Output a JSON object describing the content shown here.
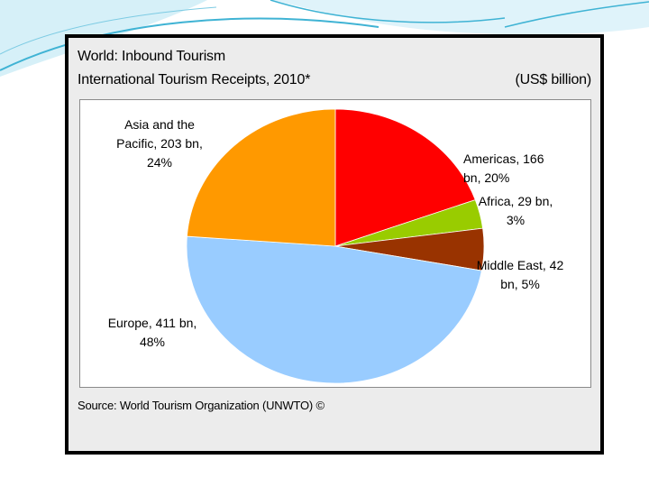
{
  "title": "World:  Inbound Tourism",
  "subtitle": "International Tourism Receipts, 2010*",
  "unit": "(US$ billion)",
  "source": "Source: World Tourism Organization (UNWTO) ©",
  "colors": {
    "background": "#ffffff",
    "frame": "#000000",
    "panel": "#ececec",
    "decoration": "#3fb3d4"
  },
  "chart_data": {
    "type": "pie",
    "title": "World:  Inbound Tourism",
    "subtitle": "International Tourism Receipts, 2010*",
    "unit": "(US$ billion)",
    "legend": "none",
    "start": "12 o'clock, clockwise",
    "slices": [
      {
        "name": "Americas",
        "value": 166,
        "percent": 20,
        "color": "#ff0000",
        "label_lines": [
          "Americas, 166",
          "bn, 20%"
        ],
        "label_anchor": "start"
      },
      {
        "name": "Africa",
        "value": 29,
        "percent": 3,
        "color": "#99cc00",
        "label_lines": [
          "Africa, 29 bn,",
          "3%"
        ],
        "label_anchor": "middle"
      },
      {
        "name": "Middle East",
        "value": 42,
        "percent": 5,
        "color": "#993300",
        "label_lines": [
          "Middle East, 42",
          "bn, 5%"
        ],
        "label_anchor": "middle"
      },
      {
        "name": "Europe",
        "value": 411,
        "percent": 48,
        "color": "#99ccff",
        "label_lines": [
          "Europe, 411 bn,",
          "48%"
        ],
        "label_anchor": "middle"
      },
      {
        "name": "Asia and the Pacific",
        "value": 203,
        "percent": 24,
        "color": "#ff9900",
        "label_lines": [
          "Asia and the",
          "Pacific, 203 bn,",
          "24%"
        ],
        "label_anchor": "middle"
      }
    ]
  }
}
